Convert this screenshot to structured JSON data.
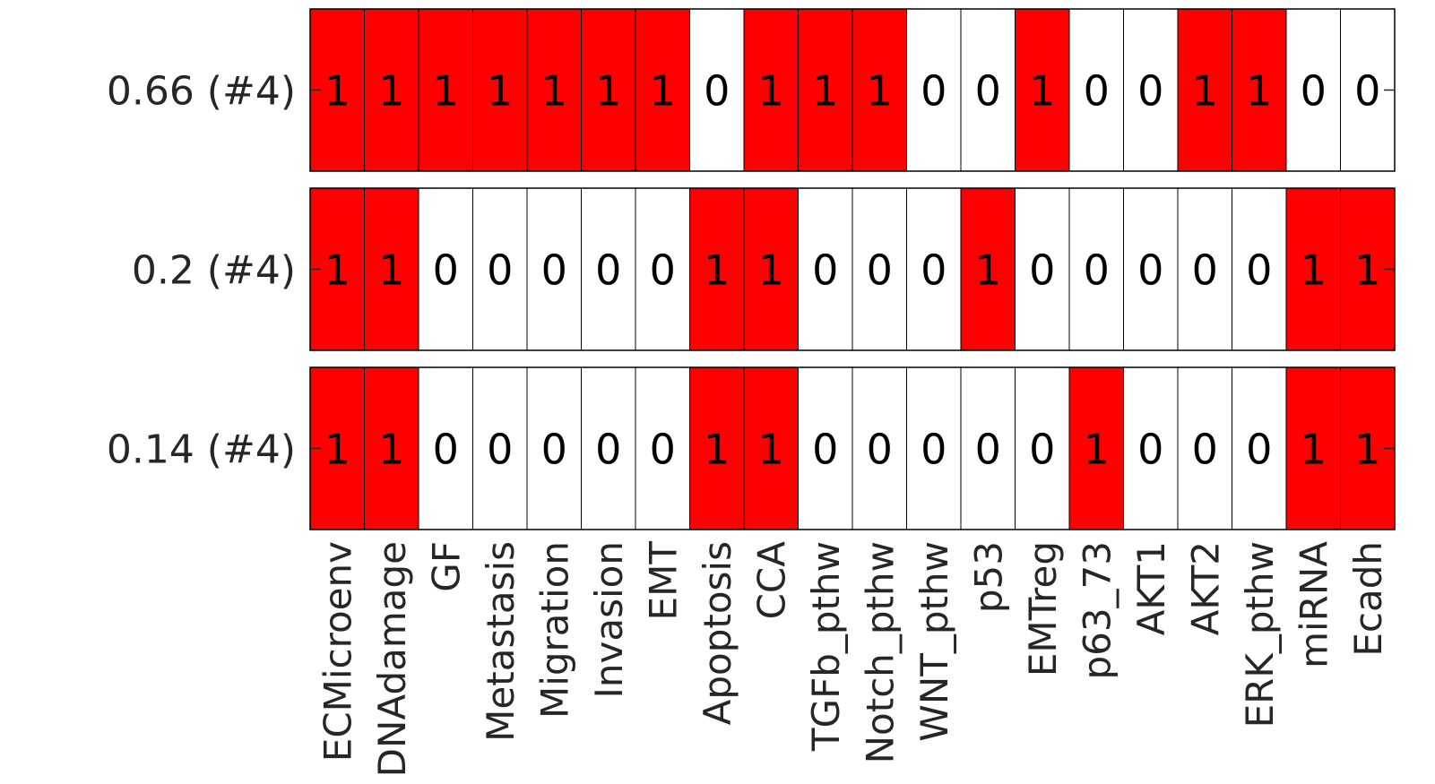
{
  "chart_data": {
    "type": "heatmap",
    "colors": {
      "on": "#ff0000",
      "off": "#ffffff",
      "border": "#000000"
    },
    "columns": [
      "ECMicroenv",
      "DNAdamage",
      "GF",
      "Metastasis",
      "Migration",
      "Invasion",
      "EMT",
      "Apoptosis",
      "CCA",
      "TGFb_pthw",
      "Notch_pthw",
      "WNT_pthw",
      "p53",
      "EMTreg",
      "p63_73",
      "AKT1",
      "AKT2",
      "ERK_pthw",
      "miRNA",
      "Ecadh"
    ],
    "rows": [
      {
        "label": "0.66 (#4)",
        "values": [
          1,
          1,
          1,
          1,
          1,
          1,
          1,
          0,
          1,
          1,
          1,
          0,
          0,
          1,
          0,
          0,
          1,
          1,
          0,
          0
        ]
      },
      {
        "label": "0.2 (#4)",
        "values": [
          1,
          1,
          0,
          0,
          0,
          0,
          0,
          1,
          1,
          0,
          0,
          0,
          1,
          0,
          0,
          0,
          0,
          0,
          1,
          1
        ]
      },
      {
        "label": "0.14 (#4)",
        "values": [
          1,
          1,
          0,
          0,
          0,
          0,
          0,
          1,
          1,
          0,
          0,
          0,
          0,
          0,
          1,
          0,
          0,
          0,
          1,
          1
        ]
      }
    ]
  }
}
